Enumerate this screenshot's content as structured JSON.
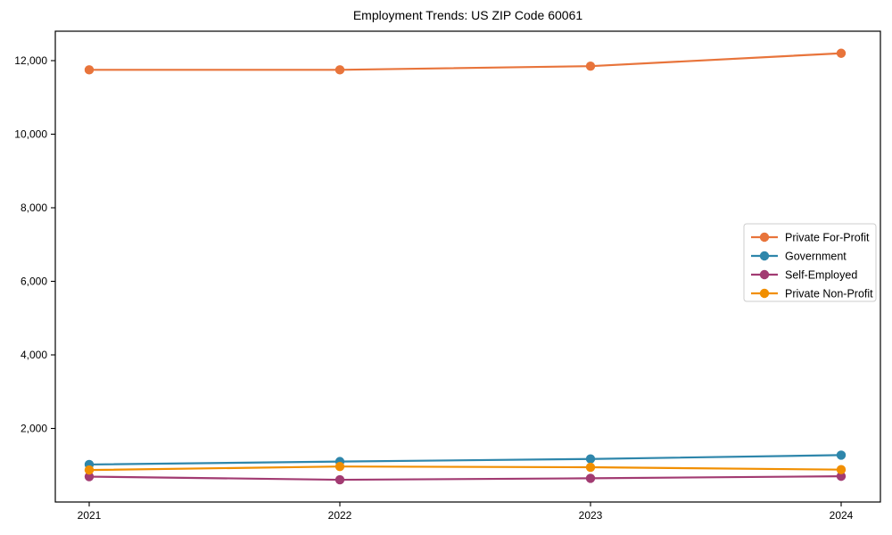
{
  "chart_data": {
    "type": "line",
    "title": "Employment Trends: US ZIP Code 60061",
    "x": [
      2021,
      2022,
      2023,
      2024
    ],
    "xlabel": "",
    "ylabel": "",
    "ylim": [
      0,
      12800
    ],
    "yticks": [
      2000,
      4000,
      6000,
      8000,
      10000,
      12000
    ],
    "grid": false,
    "legend_position": "center right",
    "series": [
      {
        "name": "Private For-Profit",
        "color": "#E8743B",
        "values": [
          11750,
          11750,
          11850,
          12200
        ]
      },
      {
        "name": "Government",
        "color": "#2E86AB",
        "values": [
          1020,
          1100,
          1170,
          1275
        ]
      },
      {
        "name": "Self-Employed",
        "color": "#A23B72",
        "values": [
          690,
          605,
          645,
          700
        ]
      },
      {
        "name": "Private Non-Profit",
        "color": "#F18F01",
        "values": [
          870,
          965,
          945,
          880
        ]
      }
    ],
    "axis_color": "#000000",
    "legend_border_color": "#cccccc",
    "legend_bg_color": "#ffffff"
  }
}
